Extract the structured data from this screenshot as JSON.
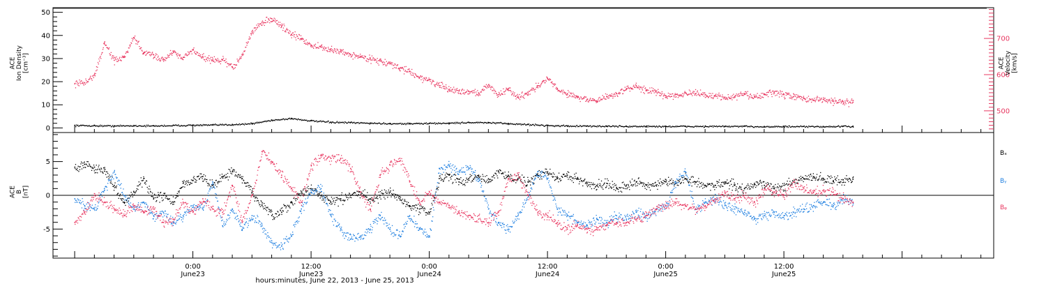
{
  "colors": {
    "black": "#000000",
    "pink": "#e8355f",
    "blue": "#1f7fe0"
  },
  "chart_data": [
    {
      "type": "scatter",
      "panel": "top",
      "ylabel_left": [
        "ACE",
        "Ion Density",
        "[cm⁻³]"
      ],
      "ylabel_right": [
        "ACE",
        "Velocity",
        "[km/s]"
      ],
      "ylim_left": [
        -2,
        52
      ],
      "ylim_right": [
        440,
        785
      ],
      "yticks_left": [
        0,
        10,
        20,
        30,
        40,
        50
      ],
      "yticks_right": [
        500,
        600,
        700
      ],
      "series": [
        {
          "name": "",
          "axis": "left",
          "color": "black",
          "x": [
            -12,
            -10,
            -8,
            -6,
            -4,
            -2,
            0,
            2,
            4,
            6,
            8,
            10,
            12,
            14,
            16,
            18,
            20,
            22,
            24,
            26,
            28,
            30,
            32,
            34,
            36,
            38,
            40,
            42,
            44,
            46,
            48,
            50,
            52,
            54,
            56,
            58,
            60,
            62,
            64,
            66,
            67
          ],
          "y": [
            1.2,
            1.1,
            1.0,
            1.1,
            1.0,
            1.2,
            1.3,
            1.4,
            1.6,
            2.0,
            3.5,
            4.2,
            3.2,
            2.6,
            2.4,
            2.2,
            2.0,
            2.0,
            2.1,
            2.2,
            2.5,
            2.4,
            2.0,
            1.6,
            1.2,
            1.0,
            0.9,
            0.9,
            0.8,
            0.8,
            0.8,
            0.8,
            0.8,
            0.8,
            0.8,
            0.7,
            0.7,
            0.7,
            0.7,
            0.8,
            0.8
          ]
        },
        {
          "name": "",
          "axis": "right",
          "color": "pink",
          "x": [
            -12,
            -11,
            -10,
            -9,
            -8,
            -7,
            -6,
            -5,
            -4,
            -3,
            -2,
            -1,
            0,
            1,
            2,
            3,
            4,
            5,
            6,
            7,
            8,
            9,
            10,
            11,
            12,
            13,
            14,
            15,
            16,
            17,
            18,
            19,
            20,
            21,
            22,
            23,
            24,
            25,
            26,
            27,
            28,
            29,
            30,
            31,
            32,
            33,
            34,
            35,
            36,
            37,
            38,
            39,
            40,
            41,
            42,
            43,
            44,
            45,
            46,
            47,
            48,
            49,
            50,
            51,
            52,
            53,
            54,
            55,
            56,
            57,
            58,
            59,
            60,
            61,
            62,
            63,
            64,
            65,
            66,
            67
          ],
          "y": [
            575,
            578,
            600,
            688,
            640,
            648,
            703,
            660,
            655,
            642,
            665,
            648,
            668,
            650,
            640,
            642,
            620,
            655,
            720,
            745,
            755,
            735,
            712,
            700,
            682,
            676,
            668,
            665,
            656,
            650,
            645,
            638,
            630,
            618,
            610,
            592,
            586,
            570,
            560,
            555,
            554,
            550,
            572,
            545,
            560,
            538,
            552,
            570,
            590,
            560,
            548,
            540,
            532,
            528,
            540,
            548,
            560,
            570,
            558,
            552,
            542,
            545,
            550,
            548,
            545,
            542,
            538,
            540,
            548,
            538,
            545,
            552,
            545,
            540,
            535,
            530,
            532,
            528,
            526,
            524
          ]
        }
      ]
    },
    {
      "type": "scatter",
      "panel": "bottom",
      "ylabel": [
        "ACE",
        "B",
        "[nT]"
      ],
      "ylim": [
        -9.3,
        9.3
      ],
      "yticks": [
        -5,
        0,
        5
      ],
      "legend": [
        "Bₓ",
        "Bᵧ",
        "Bᵩ"
      ],
      "series": [
        {
          "name": "Bₓ",
          "color": "black",
          "x": [
            -12,
            -11,
            -10,
            -9,
            -8,
            -7,
            -6,
            -5,
            -4,
            -3,
            -2,
            -1,
            0,
            1,
            2,
            3,
            4,
            5,
            6,
            7,
            8,
            9,
            10,
            11,
            12,
            13,
            14,
            15,
            16,
            17,
            18,
            19,
            20,
            21,
            22,
            23,
            24,
            25,
            26,
            27,
            28,
            29,
            30,
            31,
            32,
            33,
            34,
            35,
            36,
            37,
            38,
            39,
            40,
            41,
            42,
            43,
            44,
            45,
            46,
            47,
            48,
            49,
            50,
            51,
            52,
            53,
            54,
            55,
            56,
            57,
            58,
            59,
            60,
            61,
            62,
            63,
            64,
            65,
            66,
            67
          ],
          "y": [
            4.2,
            4.6,
            4.2,
            3.6,
            1.5,
            -1.0,
            0.5,
            2.5,
            -0.5,
            0.0,
            -1.0,
            1.8,
            2.2,
            2.8,
            1.5,
            2.8,
            3.5,
            2.5,
            0.5,
            -1.5,
            -3.0,
            -2.5,
            -1.0,
            0.5,
            1.0,
            0.0,
            -1.0,
            -0.5,
            0.0,
            0.5,
            -0.5,
            0.0,
            0.5,
            -0.5,
            -1.5,
            -2.0,
            -2.5,
            2.5,
            3.0,
            2.0,
            2.5,
            3.0,
            2.0,
            3.5,
            3.0,
            2.5,
            2.0,
            3.0,
            3.5,
            2.5,
            3.0,
            2.5,
            1.8,
            1.5,
            1.8,
            1.2,
            1.5,
            2.0,
            1.5,
            1.5,
            2.0,
            1.8,
            2.5,
            2.0,
            1.5,
            1.5,
            2.0,
            1.5,
            1.0,
            1.8,
            1.5,
            1.0,
            1.5,
            2.0,
            2.5,
            2.8,
            2.5,
            2.2,
            2.3,
            2.4
          ]
        },
        {
          "name": "Bᵧ",
          "color": "blue",
          "x": [
            -12,
            -11,
            -10,
            -9,
            -8,
            -7,
            -6,
            -5,
            -4,
            -3,
            -2,
            -1,
            0,
            1,
            2,
            3,
            4,
            5,
            6,
            7,
            8,
            9,
            10,
            11,
            12,
            13,
            14,
            15,
            16,
            17,
            18,
            19,
            20,
            21,
            22,
            23,
            24,
            25,
            26,
            27,
            28,
            29,
            30,
            31,
            32,
            33,
            34,
            35,
            36,
            37,
            38,
            39,
            40,
            41,
            42,
            43,
            44,
            45,
            46,
            47,
            48,
            49,
            50,
            51,
            52,
            53,
            54,
            55,
            56,
            57,
            58,
            59,
            60,
            61,
            62,
            63,
            64,
            65,
            66,
            67
          ],
          "y": [
            -0.5,
            -1.5,
            -2.0,
            1.0,
            3.5,
            0.0,
            -2.0,
            -1.0,
            -3.0,
            -2.5,
            -4.0,
            -3.0,
            -1.5,
            -2.0,
            2.0,
            -4.5,
            -2.0,
            -5.0,
            -3.0,
            -4.5,
            -7.0,
            -7.5,
            -6.0,
            -2.0,
            0.5,
            1.0,
            -3.0,
            -5.0,
            -6.5,
            -6.0,
            -5.0,
            -3.0,
            -5.0,
            -6.0,
            -3.0,
            -5.0,
            -6.0,
            4.0,
            4.5,
            3.5,
            4.0,
            2.5,
            -2.0,
            -4.0,
            -5.0,
            -3.0,
            0.0,
            3.5,
            2.5,
            -2.0,
            -3.0,
            -4.0,
            -4.5,
            -3.5,
            -4.0,
            -3.0,
            -3.5,
            -2.5,
            -3.0,
            -2.0,
            -1.5,
            2.0,
            3.5,
            -2.0,
            -1.0,
            -0.5,
            -1.5,
            -2.0,
            -2.5,
            -3.5,
            -3.0,
            -2.5,
            -3.0,
            -2.5,
            -2.0,
            -1.5,
            -1.0,
            -1.5,
            -0.5,
            -1.0
          ]
        },
        {
          "name": "Bᵩ",
          "color": "pink",
          "x": [
            -12,
            -11,
            -10,
            -9,
            -8,
            -7,
            -6,
            -5,
            -4,
            -3,
            -2,
            -1,
            0,
            1,
            2,
            3,
            4,
            5,
            6,
            7,
            8,
            9,
            10,
            11,
            12,
            13,
            14,
            15,
            16,
            17,
            18,
            19,
            20,
            21,
            22,
            23,
            24,
            25,
            26,
            27,
            28,
            29,
            30,
            31,
            32,
            33,
            34,
            35,
            36,
            37,
            38,
            39,
            40,
            41,
            42,
            43,
            44,
            45,
            46,
            47,
            48,
            49,
            50,
            51,
            52,
            53,
            54,
            55,
            56,
            57,
            58,
            59,
            60,
            61,
            62,
            63,
            64,
            65,
            66,
            67
          ],
          "y": [
            -4.0,
            -2.5,
            0.0,
            -1.0,
            -2.0,
            -3.0,
            -1.5,
            -2.5,
            -2.0,
            -4.0,
            -3.5,
            -1.0,
            -2.5,
            -0.5,
            -2.0,
            -2.5,
            1.5,
            -4.0,
            0.0,
            6.5,
            5.0,
            3.0,
            1.0,
            -1.0,
            4.5,
            6.0,
            5.5,
            5.5,
            4.0,
            0.5,
            -2.0,
            3.0,
            4.5,
            5.5,
            2.0,
            -1.0,
            0.5,
            -1.0,
            -1.5,
            -2.5,
            -3.0,
            -3.5,
            -4.0,
            -2.5,
            2.5,
            3.0,
            0.0,
            -2.5,
            -3.0,
            -4.0,
            -5.0,
            -4.5,
            -5.0,
            -5.0,
            -4.5,
            -4.0,
            -4.0,
            -3.5,
            -3.0,
            -2.0,
            -1.5,
            -1.0,
            -1.5,
            -2.0,
            -1.5,
            -0.5,
            0.5,
            -0.5,
            0.0,
            -1.0,
            1.0,
            0.5,
            0.0,
            2.0,
            1.0,
            0.5,
            0.8,
            0.5,
            -0.5,
            -1.0
          ]
        }
      ]
    }
  ],
  "x_axis": {
    "ticks": [
      {
        "x": 0,
        "time": "0:00",
        "day": "June23"
      },
      {
        "x": 12,
        "time": "12:00",
        "day": "June23"
      },
      {
        "x": 24,
        "time": "0:00",
        "day": "June24"
      },
      {
        "x": 36,
        "time": "12:00",
        "day": "June24"
      },
      {
        "x": 48,
        "time": "0:00",
        "day": "June25"
      },
      {
        "x": 60,
        "time": "12:00",
        "day": "June25"
      }
    ],
    "xlim": [
      -14.2,
      81.3
    ],
    "xlabel": "hours:minutes, June 22, 2013 - June 25, 2013"
  }
}
